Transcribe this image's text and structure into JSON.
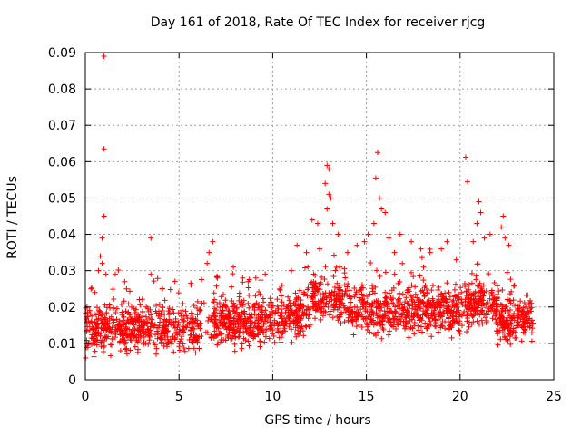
{
  "chart_data": {
    "type": "scatter",
    "title": "Day 161 of 2018, Rate Of TEC Index for receiver rjcg",
    "xlabel": "GPS time / hours",
    "ylabel": "ROTI / TECUs",
    "xlim": [
      0,
      25
    ],
    "ylim": [
      0,
      0.09
    ],
    "xticks": [
      0,
      5,
      10,
      15,
      20,
      25
    ],
    "yticks": [
      0,
      0.01,
      0.02,
      0.03,
      0.04,
      0.05,
      0.06,
      0.07,
      0.08,
      0.09
    ],
    "ytick_labels": [
      "0",
      "0.01",
      "0.02",
      "0.03",
      "0.04",
      "0.05",
      "0.06",
      "0.07",
      "0.08",
      "0.09"
    ],
    "grid": true,
    "marker": "+",
    "color": "#ff0000",
    "data_range_hours": [
      0,
      23.9
    ],
    "series": [
      {
        "name": "ROTI",
        "points": [
          [
            1.0,
            0.089
          ],
          [
            1.0,
            0.0635
          ],
          [
            1.0,
            0.045
          ],
          [
            0.9,
            0.039
          ],
          [
            0.8,
            0.034
          ],
          [
            0.9,
            0.032
          ],
          [
            0.7,
            0.03
          ],
          [
            1.1,
            0.029
          ],
          [
            0.3,
            0.025
          ],
          [
            0.5,
            0.024
          ],
          [
            1.6,
            0.029
          ],
          [
            2.1,
            0.027
          ],
          [
            2.2,
            0.025
          ],
          [
            3.5,
            0.039
          ],
          [
            3.5,
            0.029
          ],
          [
            4.1,
            0.025
          ],
          [
            6.6,
            0.035
          ],
          [
            6.8,
            0.038
          ],
          [
            6.5,
            0.032
          ],
          [
            7.9,
            0.031
          ],
          [
            8.4,
            0.028
          ],
          [
            9.1,
            0.028
          ],
          [
            9.6,
            0.029
          ],
          [
            10.5,
            0.026
          ],
          [
            11.0,
            0.03
          ],
          [
            11.3,
            0.037
          ],
          [
            11.8,
            0.035
          ],
          [
            12.1,
            0.044
          ],
          [
            12.4,
            0.043
          ],
          [
            12.5,
            0.036
          ],
          [
            12.9,
            0.059
          ],
          [
            13.0,
            0.058
          ],
          [
            12.8,
            0.054
          ],
          [
            13.0,
            0.051
          ],
          [
            13.1,
            0.05
          ],
          [
            12.9,
            0.047
          ],
          [
            13.2,
            0.043
          ],
          [
            13.5,
            0.04
          ],
          [
            14.0,
            0.035
          ],
          [
            14.5,
            0.037
          ],
          [
            14.9,
            0.038
          ],
          [
            15.1,
            0.04
          ],
          [
            15.4,
            0.043
          ],
          [
            15.5,
            0.0555
          ],
          [
            15.6,
            0.0625
          ],
          [
            15.7,
            0.05
          ],
          [
            15.8,
            0.047
          ],
          [
            16.0,
            0.046
          ],
          [
            16.2,
            0.039
          ],
          [
            16.5,
            0.035
          ],
          [
            16.8,
            0.04
          ],
          [
            17.4,
            0.038
          ],
          [
            17.9,
            0.036
          ],
          [
            18.4,
            0.035
          ],
          [
            19.0,
            0.036
          ],
          [
            19.3,
            0.038
          ],
          [
            19.8,
            0.033
          ],
          [
            20.3,
            0.0612
          ],
          [
            20.4,
            0.0545
          ],
          [
            20.7,
            0.038
          ],
          [
            21.0,
            0.049
          ],
          [
            21.1,
            0.046
          ],
          [
            20.9,
            0.043
          ],
          [
            21.3,
            0.039
          ],
          [
            21.6,
            0.04
          ],
          [
            22.2,
            0.042
          ],
          [
            22.3,
            0.045
          ],
          [
            22.4,
            0.039
          ],
          [
            22.6,
            0.037
          ],
          [
            22.9,
            0.026
          ],
          [
            23.5,
            0.02
          ],
          [
            23.8,
            0.021
          ]
        ]
      }
    ]
  }
}
